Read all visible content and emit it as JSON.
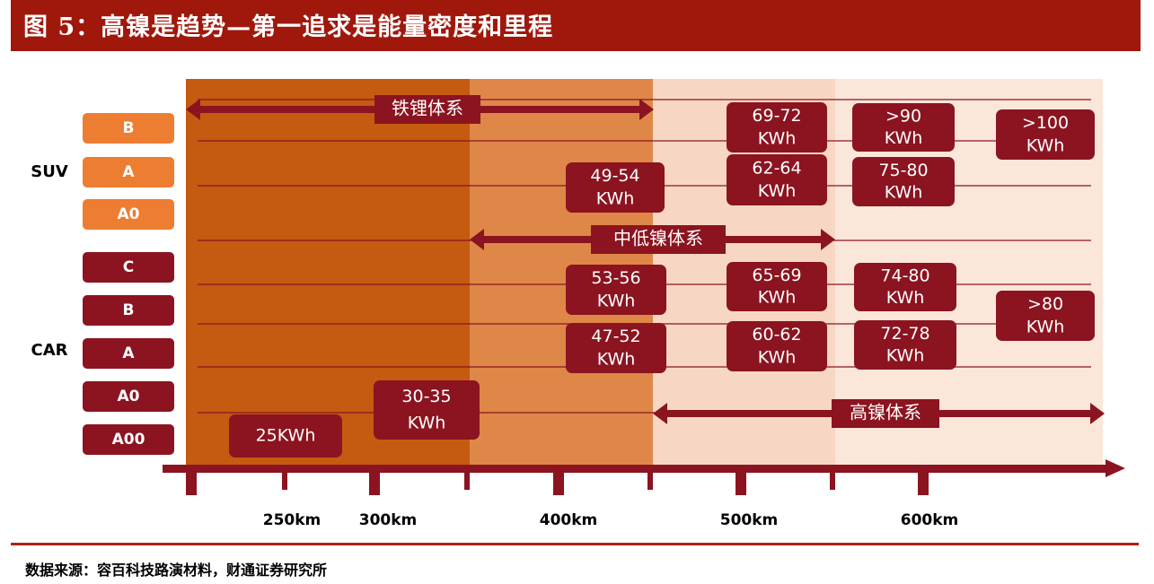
{
  "title": "图 5：高镍是趋势—第一追求是能量密度和里程",
  "source": "数据来源：容百科技路演材料，财通证券研究所",
  "colors": {
    "title_bg": "#a0180c",
    "band_1": "#c55a11",
    "band_2": "#df8749",
    "band_3": "#f7d7c3",
    "band_4": "#fbe6da",
    "box": "#8b1420",
    "suv_category": "#ed7d31",
    "car_category": "#8b1420",
    "axis": "#8b1420"
  },
  "chart_data": {
    "type": "range-matrix",
    "x_axis": {
      "ticks": [
        "250km",
        "300km",
        "400km",
        "500km",
        "600km"
      ]
    },
    "groups": [
      {
        "name": "SUV",
        "categories": [
          "B",
          "A",
          "A0"
        ]
      },
      {
        "name": "CAR",
        "categories": [
          "C",
          "B",
          "A",
          "A0",
          "A00"
        ]
      }
    ],
    "chemistries": [
      {
        "label": "铁锂体系",
        "from": "≤250km",
        "to": "400km"
      },
      {
        "label": "中低镍体系",
        "from": "400km",
        "to": "550km"
      },
      {
        "label": "高镍体系",
        "from": "400km",
        "to": ">600km"
      }
    ],
    "capacity_boxes": [
      {
        "group": "SUV",
        "category": "B",
        "range": "500km",
        "line1": "69-72",
        "line2": "KWh"
      },
      {
        "group": "SUV",
        "category": "B",
        "range": "600km",
        "line1": ">90",
        "line2": "KWh"
      },
      {
        "group": "SUV",
        "category": "B",
        "range": ">600km",
        "line1": ">100",
        "line2": "KWh"
      },
      {
        "group": "SUV",
        "category": "A",
        "range": "400km",
        "line1": "49-54",
        "line2": "KWh"
      },
      {
        "group": "SUV",
        "category": "A",
        "range": "500km",
        "line1": "62-64",
        "line2": "KWh"
      },
      {
        "group": "SUV",
        "category": "A",
        "range": "600km",
        "line1": "75-80",
        "line2": "KWh"
      },
      {
        "group": "CAR",
        "category": "B",
        "range": "400km",
        "line1": "53-56",
        "line2": "KWh"
      },
      {
        "group": "CAR",
        "category": "B",
        "range": "500km",
        "line1": "65-69",
        "line2": "KWh"
      },
      {
        "group": "CAR",
        "category": "B",
        "range": "600km",
        "line1": "74-80",
        "line2": "KWh"
      },
      {
        "group": "CAR",
        "category": "A",
        "range": ">600km",
        "line1": ">80",
        "line2": "KWh"
      },
      {
        "group": "CAR",
        "category": "A",
        "range": "400km",
        "line1": "47-52",
        "line2": "KWh"
      },
      {
        "group": "CAR",
        "category": "A",
        "range": "500km",
        "line1": "60-62",
        "line2": "KWh"
      },
      {
        "group": "CAR",
        "category": "A",
        "range": "600km",
        "line1": "72-78",
        "line2": "KWh"
      },
      {
        "group": "CAR",
        "category": "A00",
        "range": "250km",
        "line1": "25KWh",
        "line2": ""
      },
      {
        "group": "CAR",
        "category": "A0",
        "range": "300km",
        "line1": "30-35",
        "line2": "KWh"
      }
    ]
  }
}
